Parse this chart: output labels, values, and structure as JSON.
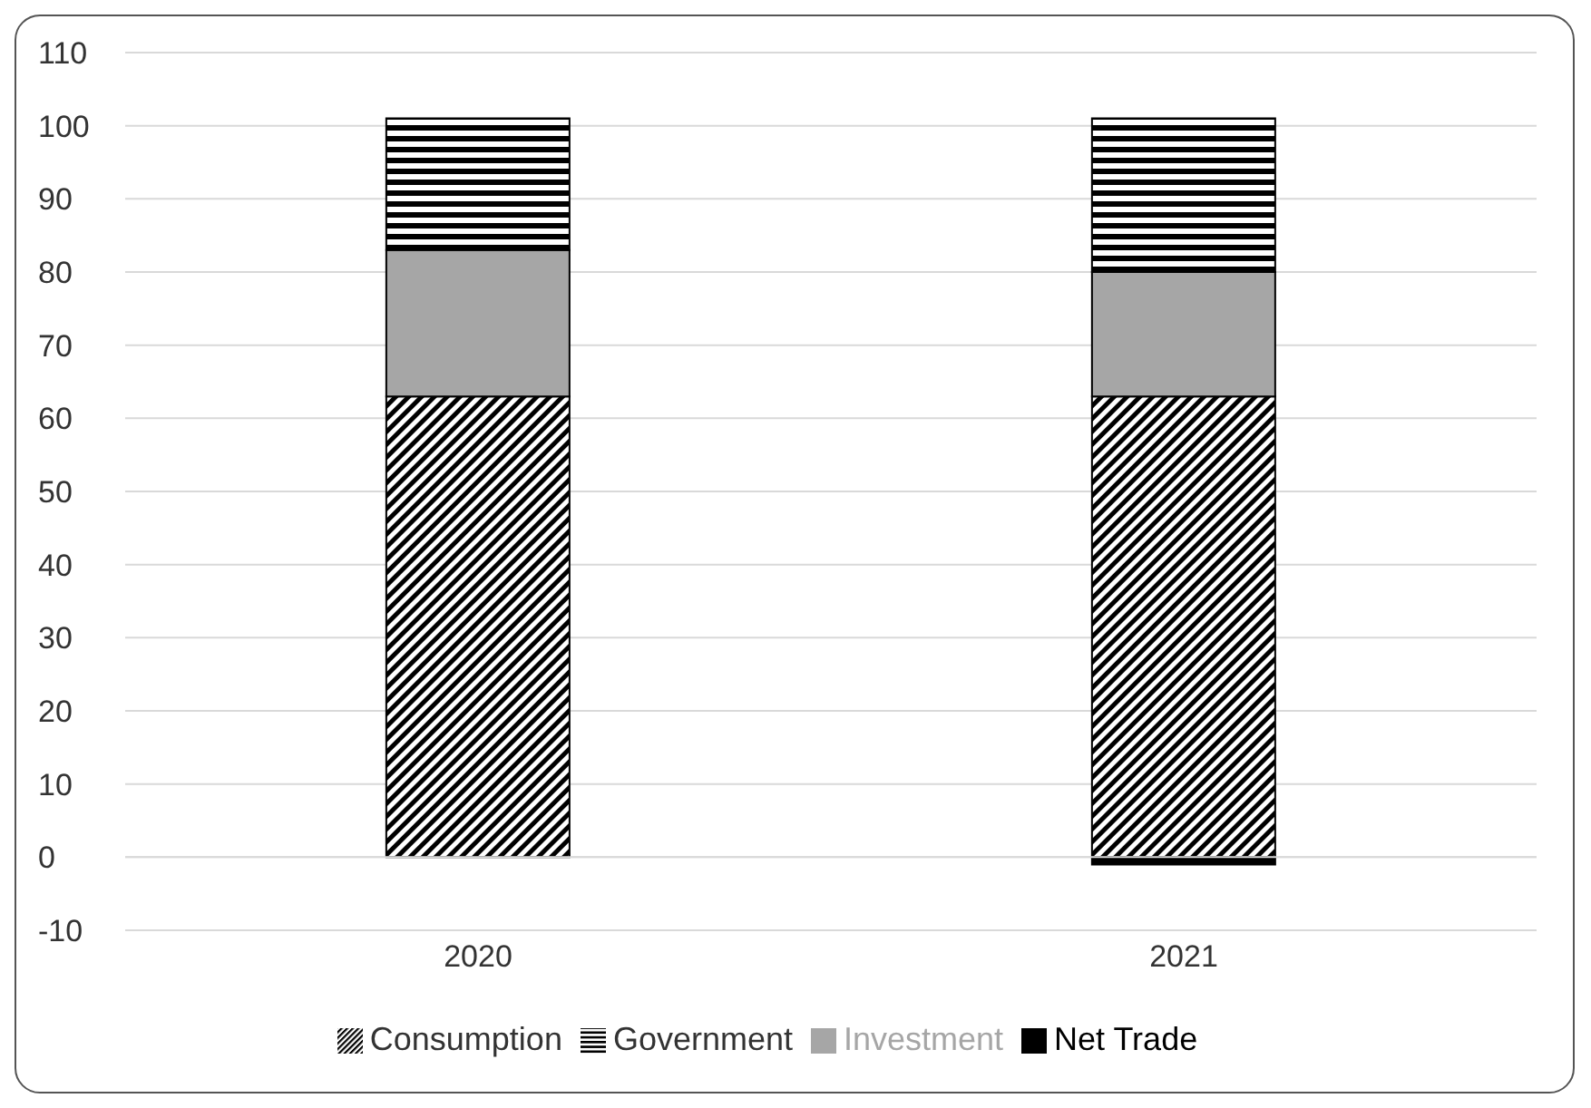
{
  "chart_data": {
    "type": "bar",
    "stacked": true,
    "categories": [
      "2020",
      "2021"
    ],
    "series": [
      {
        "name": "Consumption",
        "color": "#000000",
        "values": [
          63,
          63
        ]
      },
      {
        "name": "Investment",
        "color": "#a6a6a6",
        "values": [
          20,
          17
        ]
      },
      {
        "name": "Government",
        "color": "#000000",
        "values": [
          18,
          21
        ]
      },
      {
        "name": "Net Trade",
        "color": "#000000",
        "values": [
          0,
          -1
        ]
      }
    ],
    "ylim": [
      -10,
      110
    ],
    "yticks": [
      -10,
      0,
      10,
      20,
      30,
      40,
      50,
      60,
      70,
      80,
      90,
      100,
      110
    ],
    "grid": "y",
    "legend": "bottom"
  }
}
